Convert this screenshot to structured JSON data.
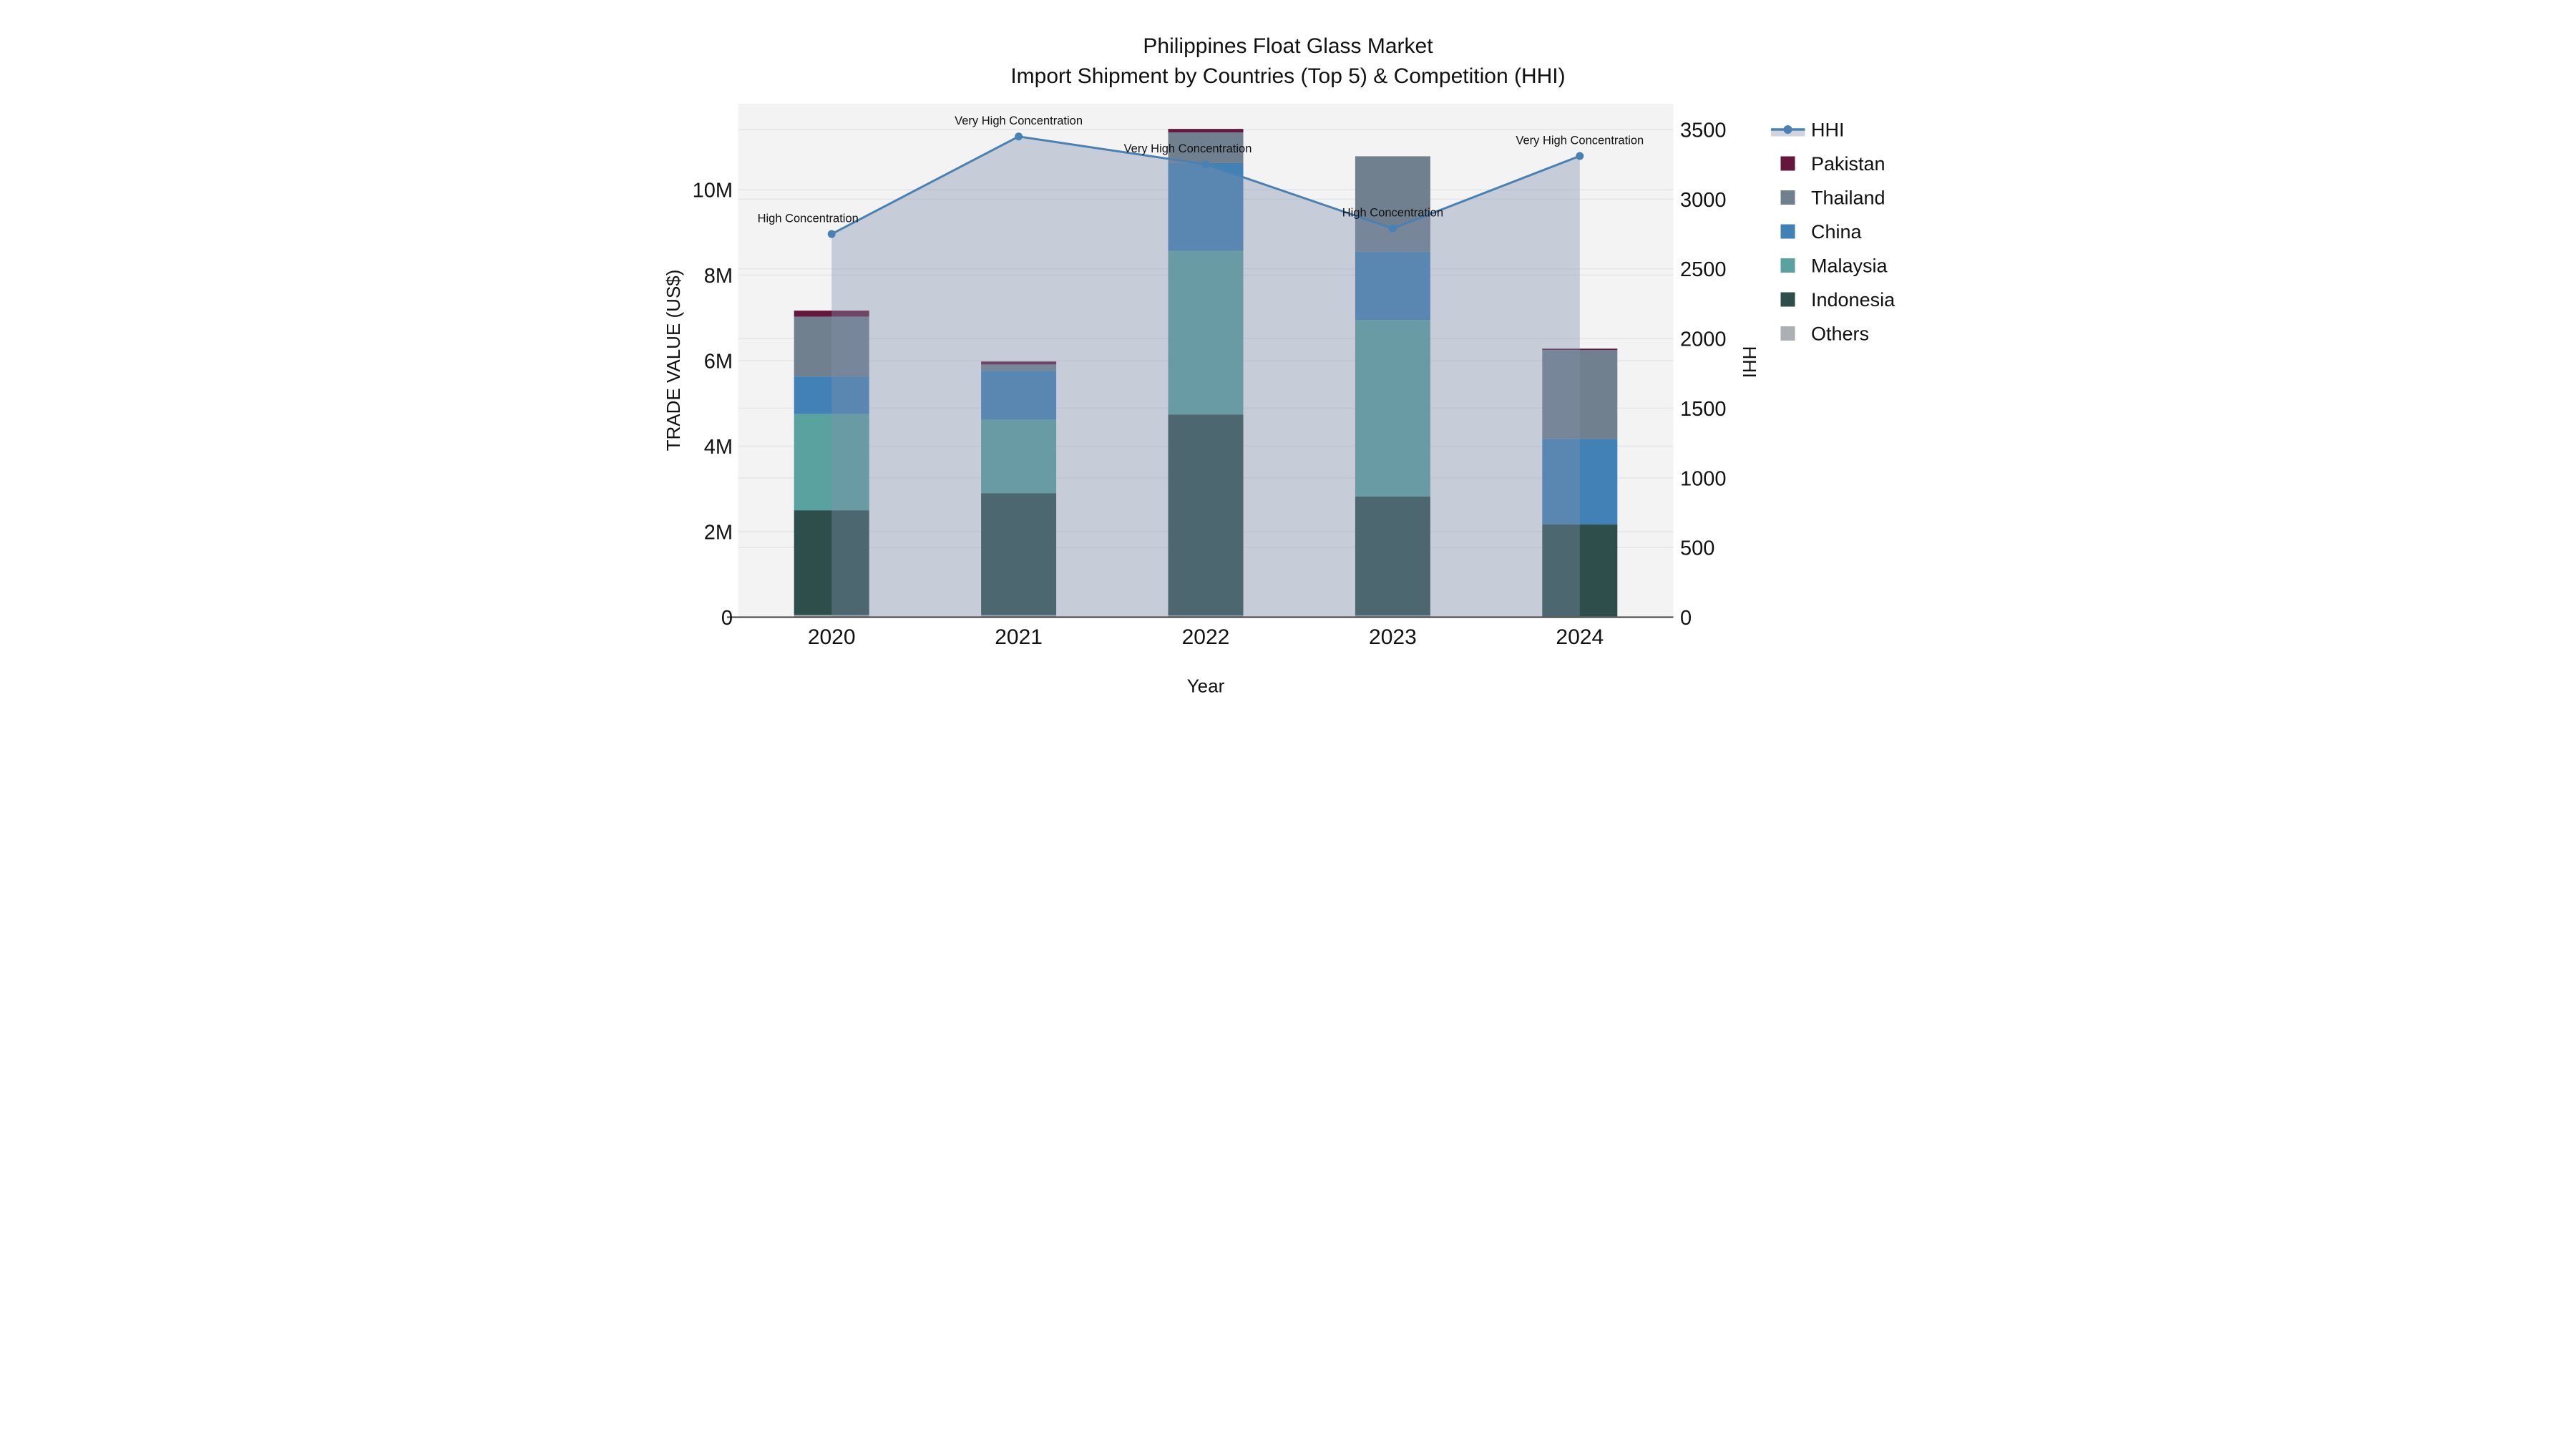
{
  "title": {
    "line1": "Philippines Float Glass Market",
    "line2": "Import Shipment by Countries (Top 5) & Competition (HHI)"
  },
  "axes": {
    "x_title": "Year",
    "y_left_title": "TRADE VALUE (US$)",
    "y_right_title": "HHI",
    "x_tick_labels": [
      "2020",
      "2021",
      "2022",
      "2023",
      "2024"
    ],
    "y_left_ticks": [
      {
        "label": "0",
        "value": 0
      },
      {
        "label": "2M",
        "value": 2
      },
      {
        "label": "4M",
        "value": 4
      },
      {
        "label": "6M",
        "value": 6
      },
      {
        "label": "8M",
        "value": 8
      },
      {
        "label": "10M",
        "value": 10
      }
    ],
    "y_right_ticks": [
      {
        "label": "0",
        "value": 0
      },
      {
        "label": "500",
        "value": 500
      },
      {
        "label": "1000",
        "value": 1000
      },
      {
        "label": "1500",
        "value": 1500
      },
      {
        "label": "2000",
        "value": 2000
      },
      {
        "label": "2500",
        "value": 2500
      },
      {
        "label": "3000",
        "value": 3000
      },
      {
        "label": "3500",
        "value": 3500
      }
    ]
  },
  "chart_data": {
    "type": "combo: stacked bar (trade value) + line with area fill (HHI)",
    "categories": [
      "2020",
      "2021",
      "2022",
      "2023",
      "2024"
    ],
    "bar_value_unit": "million US$",
    "stack_order": "bottom to top",
    "series": [
      {
        "name": "Others",
        "color": "#ACB0B4",
        "values": [
          0.05,
          0.05,
          0.04,
          0.04,
          0.02
        ]
      },
      {
        "name": "Indonesia",
        "color": "#2E4E4C",
        "values": [
          2.45,
          2.85,
          4.7,
          2.78,
          2.15
        ]
      },
      {
        "name": "Malaysia",
        "color": "#5AA2A0",
        "values": [
          2.25,
          1.72,
          3.83,
          4.13,
          0
        ]
      },
      {
        "name": "China",
        "color": "#4281B6",
        "values": [
          0.88,
          1.14,
          2.05,
          1.6,
          2.0
        ]
      },
      {
        "name": "Thailand",
        "color": "#71808F",
        "values": [
          1.4,
          0.15,
          0.72,
          2.23,
          2.08
        ]
      },
      {
        "name": "Pakistan",
        "color": "#64163C",
        "values": [
          0.14,
          0.07,
          0.08,
          0,
          0.03
        ]
      }
    ],
    "bar_totals_musd": [
      7.17,
      5.98,
      11.42,
      10.78,
      6.28
    ],
    "line_series": {
      "name": "HHI",
      "axis": "right",
      "color": "#4A81B4",
      "area_fill": "rgba(128,144,170,0.38)",
      "values": [
        2750,
        3450,
        3250,
        2790,
        3310
      ]
    },
    "annotations": [
      {
        "category": "2020",
        "text": "High Concentration",
        "dx": -66
      },
      {
        "category": "2021",
        "text": "Very High Concentration",
        "dx": 0
      },
      {
        "category": "2022",
        "text": "Very High Concentration",
        "dx": -50
      },
      {
        "category": "2023",
        "text": "High Concentration",
        "dx": 0
      },
      {
        "category": "2024",
        "text": "Very High Concentration",
        "dx": 0
      }
    ],
    "axis_ranges": {
      "y_left_musd": [
        0,
        12
      ],
      "y_right_hhi": [
        0,
        3685
      ]
    },
    "grid": true,
    "legend_position": "right",
    "legend": [
      {
        "label": "HHI",
        "type": "line",
        "color": "#4A81B4",
        "band_color": "#CFD5DF"
      },
      {
        "label": "Pakistan",
        "type": "swatch",
        "color": "#64163C"
      },
      {
        "label": "Thailand",
        "type": "swatch",
        "color": "#71808F"
      },
      {
        "label": "China",
        "type": "swatch",
        "color": "#4281B6"
      },
      {
        "label": "Malaysia",
        "type": "swatch",
        "color": "#5AA2A0"
      },
      {
        "label": "Indonesia",
        "type": "swatch",
        "color": "#2E4E4C"
      },
      {
        "label": "Others",
        "type": "swatch",
        "color": "#ACB0B4"
      }
    ]
  }
}
